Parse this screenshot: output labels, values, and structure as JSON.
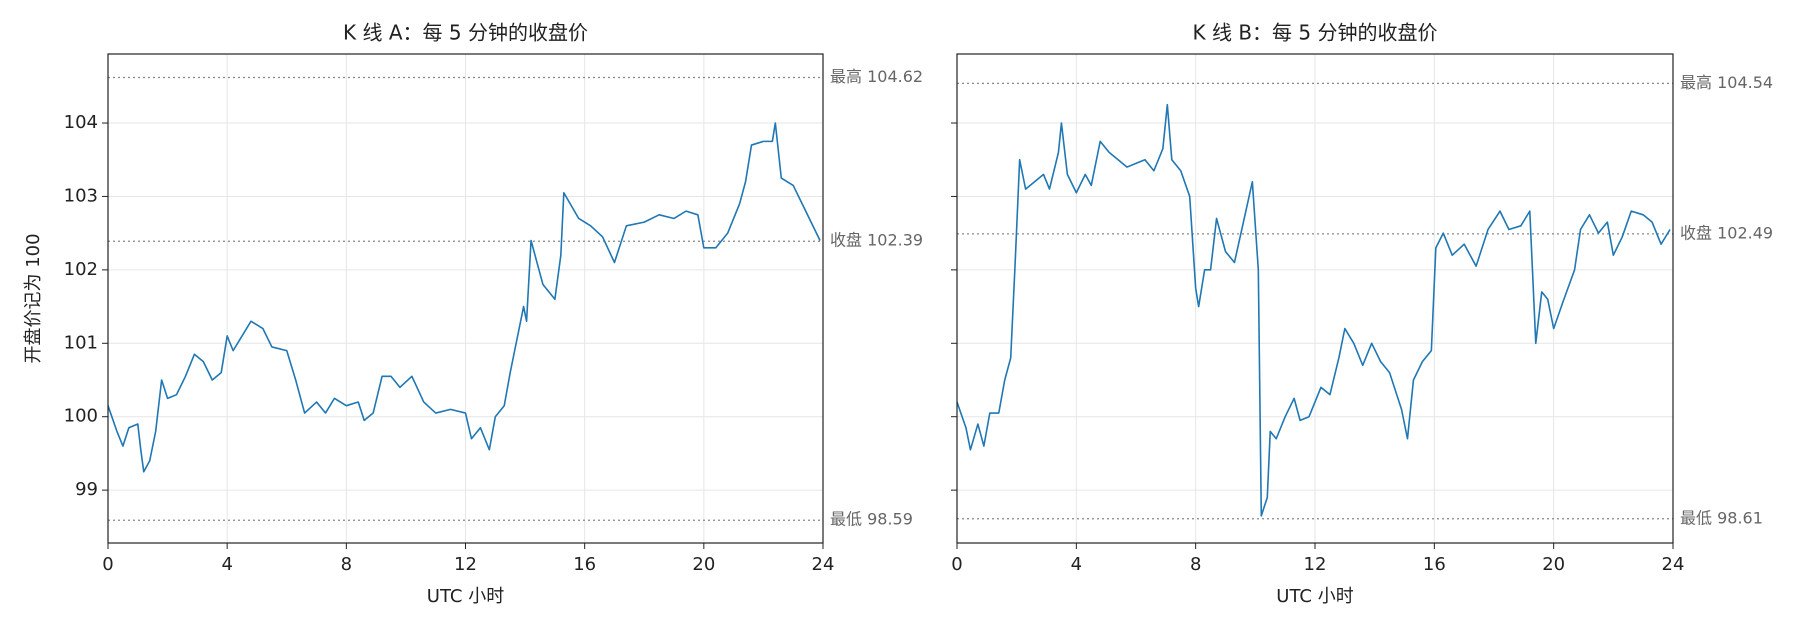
{
  "chart_data": [
    {
      "type": "line",
      "title": "K 线 A：每 5 分钟的收盘价",
      "xlabel": "UTC 小时",
      "ylabel": "开盘价记为 100",
      "color": "#1f77b4",
      "grid": true,
      "ytick_labels": true,
      "xlim": [
        0,
        24
      ],
      "xticks": [
        0,
        4,
        8,
        12,
        16,
        20,
        24
      ],
      "ylim": [
        98.28,
        104.94
      ],
      "yticks": [
        99,
        100,
        101,
        102,
        103,
        104
      ],
      "x": [
        0,
        0.3,
        0.5,
        0.7,
        1.0,
        1.1,
        1.2,
        1.4,
        1.6,
        1.8,
        2.0,
        2.3,
        2.6,
        2.9,
        3.2,
        3.5,
        3.8,
        4.0,
        4.2,
        4.5,
        4.8,
        5.2,
        5.5,
        6.0,
        6.3,
        6.6,
        7.0,
        7.3,
        7.6,
        8.0,
        8.4,
        8.6,
        8.9,
        9.2,
        9.5,
        9.8,
        10.2,
        10.6,
        11.0,
        11.5,
        12.0,
        12.2,
        12.5,
        12.8,
        13.0,
        13.3,
        13.5,
        13.8,
        13.95,
        14.05,
        14.2,
        14.6,
        15.0,
        15.2,
        15.3,
        15.8,
        16.2,
        16.6,
        17.0,
        17.4,
        18.0,
        18.5,
        19.0,
        19.4,
        19.8,
        20.0,
        20.4,
        20.8,
        21.2,
        21.4,
        21.6,
        22.0,
        22.3,
        22.4,
        22.6,
        23.0,
        23.3,
        23.6,
        23.9
      ],
      "values": [
        100.15,
        99.8,
        99.6,
        99.85,
        99.9,
        99.55,
        99.25,
        99.4,
        99.8,
        100.5,
        100.25,
        100.3,
        100.55,
        100.85,
        100.75,
        100.5,
        100.6,
        101.1,
        100.9,
        101.1,
        101.3,
        101.2,
        100.95,
        100.9,
        100.5,
        100.05,
        100.2,
        100.05,
        100.25,
        100.15,
        100.2,
        99.95,
        100.05,
        100.55,
        100.55,
        100.4,
        100.55,
        100.2,
        100.05,
        100.1,
        100.05,
        99.7,
        99.85,
        99.55,
        100.0,
        100.15,
        100.6,
        101.2,
        101.5,
        101.3,
        102.4,
        101.8,
        101.6,
        102.2,
        103.05,
        102.7,
        102.6,
        102.45,
        102.1,
        102.6,
        102.65,
        102.75,
        102.7,
        102.8,
        102.75,
        102.3,
        102.3,
        102.5,
        102.9,
        103.2,
        103.7,
        103.75,
        103.75,
        104.0,
        103.25,
        103.15,
        102.9,
        102.65,
        102.4
      ],
      "reference_lines": [
        {
          "value": 104.62,
          "label": "最高 104.62"
        },
        {
          "value": 102.39,
          "label": "收盘 102.39"
        },
        {
          "value": 98.59,
          "label": "最低 98.59"
        }
      ]
    },
    {
      "type": "line",
      "title": "K 线 B：每 5 分钟的收盘价",
      "xlabel": "UTC 小时",
      "color": "#1f77b4",
      "grid": true,
      "ytick_labels": false,
      "xlim": [
        0,
        24
      ],
      "xticks": [
        0,
        4,
        8,
        12,
        16,
        20,
        24
      ],
      "ylim": [
        98.28,
        104.94
      ],
      "yticks": [
        99,
        100,
        101,
        102,
        103,
        104
      ],
      "x": [
        0,
        0.3,
        0.45,
        0.7,
        0.9,
        1.1,
        1.4,
        1.6,
        1.8,
        1.95,
        2.1,
        2.3,
        2.6,
        2.9,
        3.1,
        3.4,
        3.5,
        3.7,
        4.0,
        4.3,
        4.5,
        4.8,
        5.1,
        5.4,
        5.7,
        6.0,
        6.3,
        6.6,
        6.9,
        7.05,
        7.2,
        7.5,
        7.8,
        8.0,
        8.1,
        8.3,
        8.5,
        8.7,
        9.0,
        9.3,
        9.6,
        9.9,
        10.1,
        10.2,
        10.4,
        10.5,
        10.7,
        11.0,
        11.3,
        11.5,
        11.8,
        12.2,
        12.5,
        12.8,
        13.0,
        13.3,
        13.6,
        13.9,
        14.2,
        14.5,
        14.9,
        15.1,
        15.3,
        15.6,
        15.9,
        16.05,
        16.3,
        16.6,
        17.0,
        17.4,
        17.8,
        18.2,
        18.5,
        18.9,
        19.2,
        19.4,
        19.6,
        19.8,
        20.0,
        20.3,
        20.7,
        20.9,
        21.2,
        21.5,
        21.8,
        22.0,
        22.3,
        22.6,
        23.0,
        23.3,
        23.6,
        23.9
      ],
      "values": [
        100.2,
        99.85,
        99.55,
        99.9,
        99.6,
        100.05,
        100.05,
        100.5,
        100.8,
        102.1,
        103.5,
        103.1,
        103.2,
        103.3,
        103.1,
        103.6,
        104.0,
        103.3,
        103.05,
        103.3,
        103.15,
        103.75,
        103.6,
        103.5,
        103.4,
        103.45,
        103.5,
        103.35,
        103.65,
        104.25,
        103.5,
        103.35,
        103.0,
        101.75,
        101.5,
        102.0,
        102.0,
        102.7,
        102.25,
        102.1,
        102.65,
        103.2,
        102.0,
        98.65,
        98.9,
        99.8,
        99.7,
        100.0,
        100.25,
        99.95,
        100.0,
        100.4,
        100.3,
        100.8,
        101.2,
        101.0,
        100.7,
        101.0,
        100.75,
        100.6,
        100.1,
        99.7,
        100.5,
        100.75,
        100.9,
        102.3,
        102.5,
        102.2,
        102.35,
        102.05,
        102.55,
        102.8,
        102.55,
        102.6,
        102.8,
        101.0,
        101.7,
        101.6,
        101.2,
        101.55,
        102.0,
        102.55,
        102.75,
        102.5,
        102.65,
        102.2,
        102.45,
        102.8,
        102.75,
        102.65,
        102.35,
        102.55
      ],
      "reference_lines": [
        {
          "value": 104.54,
          "label": "最高 104.54"
        },
        {
          "value": 102.49,
          "label": "收盘 102.49"
        },
        {
          "value": 98.61,
          "label": "最低 98.61"
        }
      ]
    }
  ]
}
